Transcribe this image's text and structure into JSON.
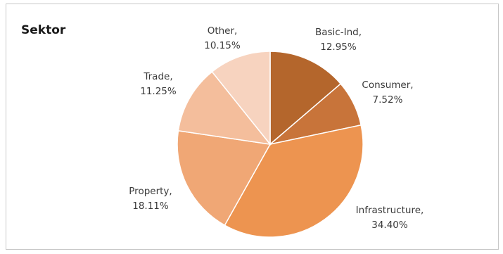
{
  "chart_data": {
    "type": "pie",
    "title": "Sektor",
    "slices": [
      {
        "name": "Basic-Ind",
        "value": 12.95,
        "label": "12.95%",
        "color": "#b4662c"
      },
      {
        "name": "Consumer",
        "value": 7.52,
        "label": "7.52%",
        "color": "#c8743a"
      },
      {
        "name": "Infrastructure",
        "value": 34.4,
        "label": "34.40%",
        "color": "#ed9450"
      },
      {
        "name": "Property",
        "value": 18.11,
        "label": "18.11%",
        "color": "#f0a775"
      },
      {
        "name": "Trade",
        "value": 11.25,
        "label": "11.25%",
        "color": "#f4be9c"
      },
      {
        "name": "Other",
        "value": 10.15,
        "label": "10.15%",
        "color": "#f7d3bf"
      }
    ],
    "legend": "none",
    "grid": false
  }
}
